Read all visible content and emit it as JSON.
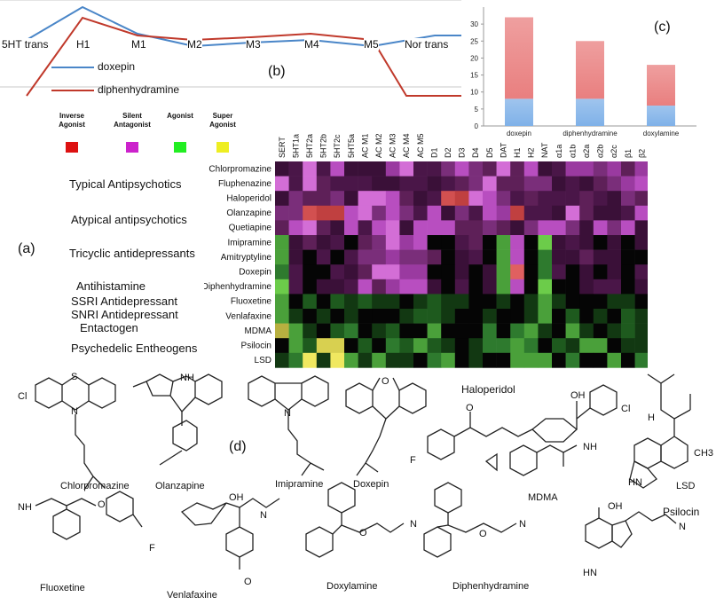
{
  "panels": {
    "a": "(a)",
    "b": "(b)",
    "c": "(c)",
    "d": "(d)"
  },
  "panel_b": {
    "categories": [
      "5HT trans",
      "H1",
      "M1",
      "M2",
      "M3",
      "M4",
      "M5",
      "Nor trans"
    ],
    "series": [
      {
        "name": "doxepin",
        "color": "#4a86c8"
      },
      {
        "name": "diphenhydramine",
        "color": "#c0392b"
      }
    ]
  },
  "chart_data": {
    "type": "bar",
    "stacked": true,
    "categories": [
      "doxepin",
      "diphenhydramine",
      "doxylamine"
    ],
    "series": [
      {
        "values": [
          8,
          8,
          6
        ],
        "color": "#7fb1e8"
      },
      {
        "values": [
          24,
          17,
          12
        ],
        "color": "#e97f7f"
      }
    ],
    "ylim": [
      0,
      35
    ],
    "yticks": [
      "0",
      "5",
      "10",
      "15",
      "20",
      "25",
      "30"
    ]
  },
  "legend_a": [
    {
      "label": "Inverse Agonist",
      "color": "#dd1111"
    },
    {
      "label": "Silent Antagonist",
      "color": "#cc22cc"
    },
    {
      "label": "Agonist",
      "color": "#22ee22"
    },
    {
      "label": "Super Agonist",
      "color": "#eeee22"
    }
  ],
  "heatmap": {
    "columns": [
      "SERT",
      "5HT1a",
      "5HT2a",
      "5HT2b",
      "5HT2c",
      "5HT5a",
      "AC M1",
      "AC M2",
      "AC M3",
      "AC M4",
      "AC M5",
      "D1",
      "D2",
      "D3",
      "D4",
      "D5",
      "DAT",
      "H1",
      "H2",
      "NAT",
      "α1a",
      "α1b",
      "α2a",
      "α2b",
      "α2c",
      "β1",
      "β2"
    ],
    "rows": [
      "Chlorpromazine",
      "Fluphenazine",
      "Haloperidol",
      "Olanzapine",
      "Quetiapine",
      "Imipramine",
      "Amitryptyline",
      "Doxepin",
      "Diphenhydramine",
      "Fluoxetine",
      "Venlafaxine",
      "MDMA",
      "Psilocin",
      "LSD"
    ],
    "classes": [
      "Typical Antipsychotics",
      "Atypical antipsychotics",
      "Tricyclic antidepressants",
      "Antihistamine",
      "SSRI Antidepressant",
      "SNRI Antidepressant",
      "Entactogen",
      "Psychedelic Entheogens"
    ]
  },
  "structures": {
    "top": [
      "Chlorpromazine",
      "Olanzapine",
      "Imipramine",
      "Doxepin",
      "Haloperidol",
      "MDMA",
      "LSD"
    ],
    "bottom": [
      "Fluoxetine",
      "Venlafaxine",
      "Doxylamine",
      "Diphenhydramine",
      "Psilocin"
    ],
    "atoms": {
      "cl": "Cl",
      "n": "N",
      "f": "F",
      "o": "O",
      "oh": "OH",
      "nh": "NH",
      "hn": "HN",
      "h": "H",
      "ch3": "CH3",
      "s": "S"
    }
  }
}
